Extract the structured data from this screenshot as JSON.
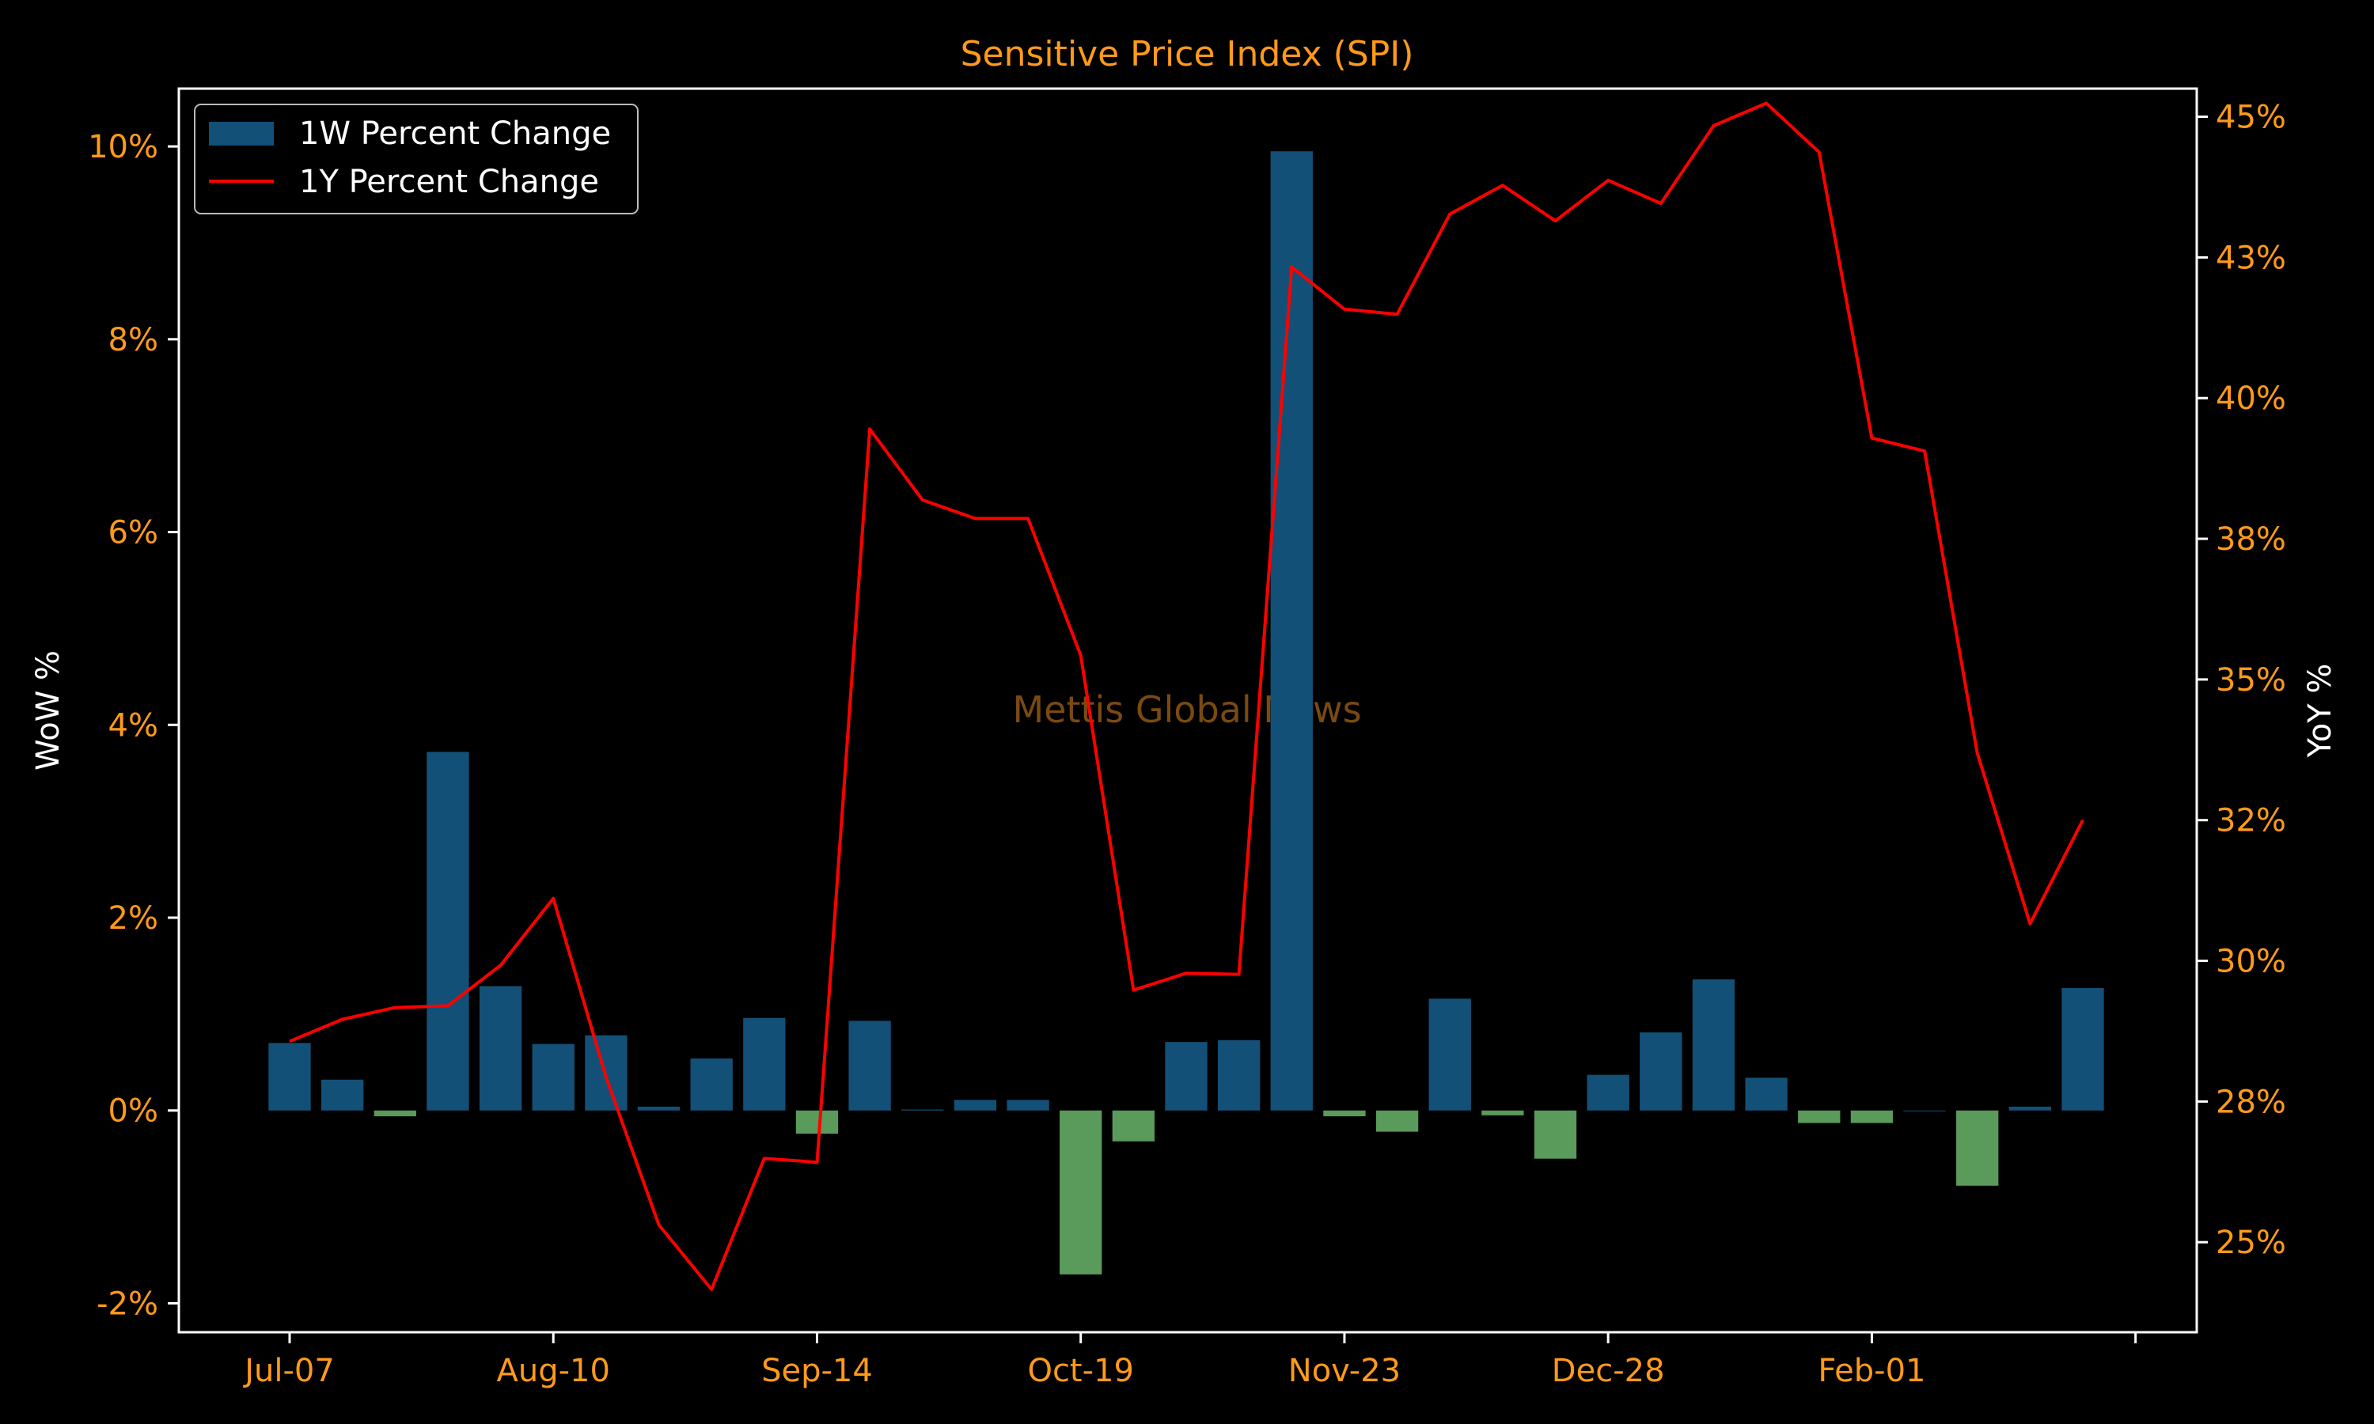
{
  "chart_data": {
    "type": "bar+line",
    "title": "Sensitive Price Index (SPI)",
    "watermark": "Mettis Global News",
    "xlabel": "",
    "ylabel_left": "WoW %",
    "ylabel_right": "YoY %",
    "x_tick_labels": [
      "Jul-07",
      "Aug-10",
      "Sep-14",
      "Oct-19",
      "Nov-23",
      "Dec-28",
      "Feb-01"
    ],
    "left_axis": {
      "ticks": [
        -2,
        0,
        2,
        4,
        6,
        8,
        10
      ],
      "tick_labels": [
        "-2%",
        "0%",
        "2%",
        "4%",
        "6%",
        "8%",
        "10%"
      ],
      "ylim": [
        -2.3,
        10.6
      ]
    },
    "right_axis": {
      "ticks": [
        25,
        27.5,
        30,
        32.5,
        35,
        37.5,
        40,
        42.5,
        45
      ],
      "tick_labels": [
        "25%",
        "28%",
        "30%",
        "32%",
        "35%",
        "38%",
        "40%",
        "43%",
        "45%"
      ],
      "ylim": [
        23.4,
        45.5
      ]
    },
    "legend": {
      "placement": "top-left",
      "entries": [
        "1W Percent Change",
        "1Y Percent Change"
      ]
    },
    "grid": false,
    "colors": {
      "positive_bar": "#135077",
      "negative_bar": "#5a9a5a",
      "line": "#ff0000",
      "tick": "#ff9a1a",
      "axes": "#ffffff",
      "background": "#000000"
    },
    "series": [
      {
        "name": "1W Percent Change",
        "type": "bar",
        "values": [
          0.7,
          0.32,
          -0.06,
          3.72,
          1.29,
          0.69,
          0.78,
          0.04,
          0.54,
          0.96,
          -0.24,
          0.93,
          0.01,
          0.11,
          0.11,
          -1.7,
          -0.32,
          0.71,
          0.73,
          9.95,
          -0.06,
          -0.22,
          1.16,
          -0.05,
          -0.5,
          0.37,
          0.81,
          1.36,
          0.34,
          -0.13,
          -0.13,
          0.0,
          -0.78,
          0.04,
          1.27
        ]
      },
      {
        "name": "1Y Percent Change",
        "type": "line",
        "values": [
          28.57,
          28.96,
          29.17,
          29.2,
          29.92,
          31.11,
          27.93,
          25.31,
          24.16,
          26.49,
          26.42,
          39.45,
          38.19,
          37.86,
          37.86,
          35.43,
          29.48,
          29.78,
          29.76,
          42.33,
          41.58,
          41.49,
          43.27,
          43.78,
          43.15,
          43.87,
          43.46,
          44.84,
          45.24,
          44.37,
          39.29,
          39.06,
          33.69,
          30.66,
          32.5
        ]
      }
    ]
  }
}
